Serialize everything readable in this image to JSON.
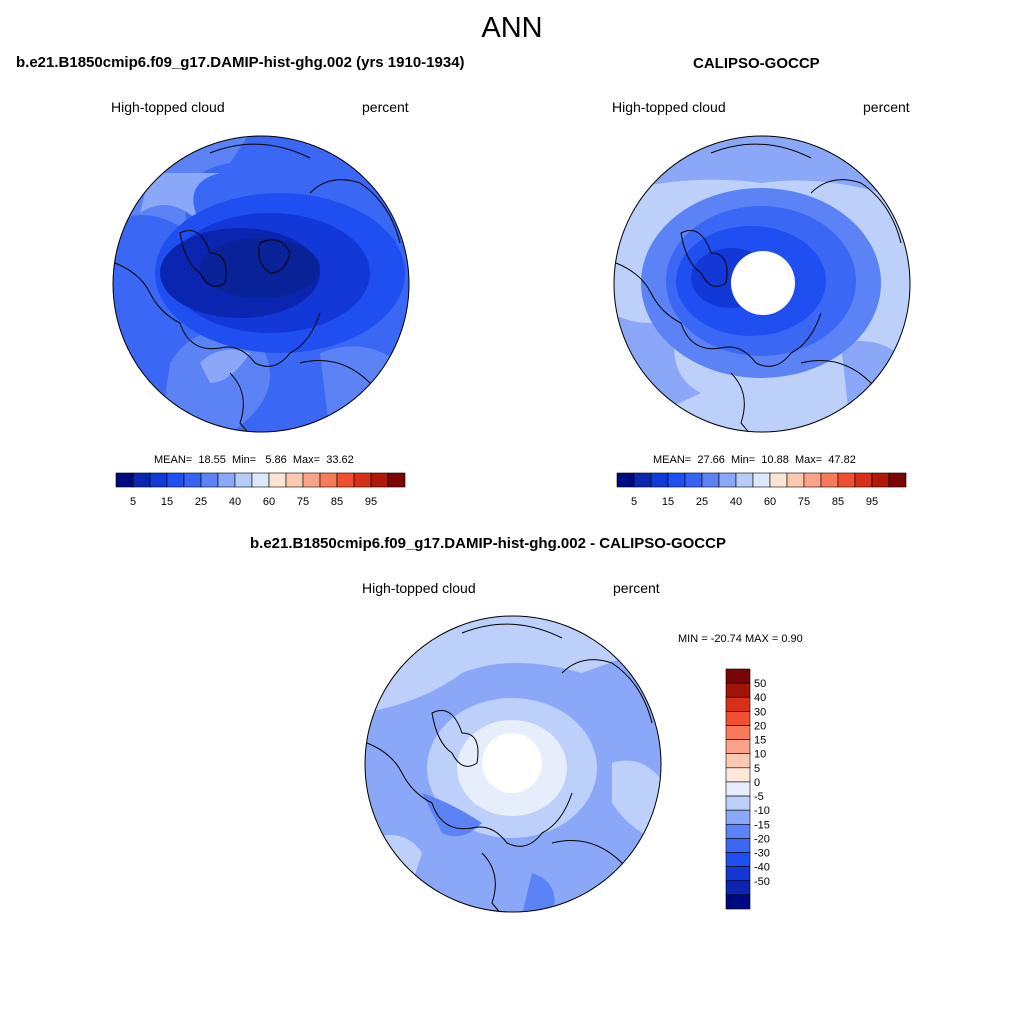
{
  "title": "ANN",
  "colors": {
    "seq_palette": [
      "#000a80",
      "#0a25b0",
      "#0f3ad8",
      "#1f4ff0",
      "#3764f5",
      "#5b83f5",
      "#8ba7f7",
      "#b8ccf8",
      "#dce8fb",
      "#fbe4d2",
      "#fbc8b0",
      "#fba38a",
      "#f87a58",
      "#f05030",
      "#d83018",
      "#b01808",
      "#7a0505"
    ],
    "diff_palette": [
      "#000a80",
      "#0a25b0",
      "#1238d8",
      "#1f4ff0",
      "#3a68f5",
      "#5b83f5",
      "#8ba7f7",
      "#bcd0f9",
      "#e6eefc",
      "#fde8da",
      "#fbc8b0",
      "#fba38a",
      "#f87a58",
      "#f05030",
      "#d83018",
      "#a01508",
      "#7a0505"
    ]
  },
  "panels": [
    {
      "id": "model",
      "title": "b.e21.B1850cmip6.f09_g17.DAMIP-hist-ghg.002 (yrs 1910-1934)",
      "left_label": "High-topped cloud",
      "right_label": "percent",
      "stats": {
        "mean_label": "MEAN=",
        "mean": "18.55",
        "min_label": "Min=",
        "min": "5.86",
        "max_label": "Max=",
        "max": "33.62"
      },
      "colorbar_ticks": [
        "5",
        "15",
        "25",
        "40",
        "60",
        "75",
        "85",
        "95"
      ],
      "has_pole_hole": false
    },
    {
      "id": "obs",
      "title": "CALIPSO-GOCCP",
      "left_label": "High-topped cloud",
      "right_label": "percent",
      "stats": {
        "mean_label": "MEAN=",
        "mean": "27.66",
        "min_label": "Min=",
        "min": "10.88",
        "max_label": "Max=",
        "max": "47.82"
      },
      "colorbar_ticks": [
        "5",
        "15",
        "25",
        "40",
        "60",
        "75",
        "85",
        "95"
      ],
      "has_pole_hole": true
    }
  ],
  "diff": {
    "title": "b.e21.B1850cmip6.f09_g17.DAMIP-hist-ghg.002 - CALIPSO-GOCCP",
    "left_label": "High-topped cloud",
    "right_label": "percent",
    "min_max_text": "MIN = -20.74 MAX =   0.90",
    "colorbar_ticks": [
      "50",
      "40",
      "30",
      "20",
      "15",
      "10",
      "5",
      "0",
      "-5",
      "-10",
      "-15",
      "-20",
      "-30",
      "-40",
      "-50"
    ],
    "has_pole_hole": true
  }
}
